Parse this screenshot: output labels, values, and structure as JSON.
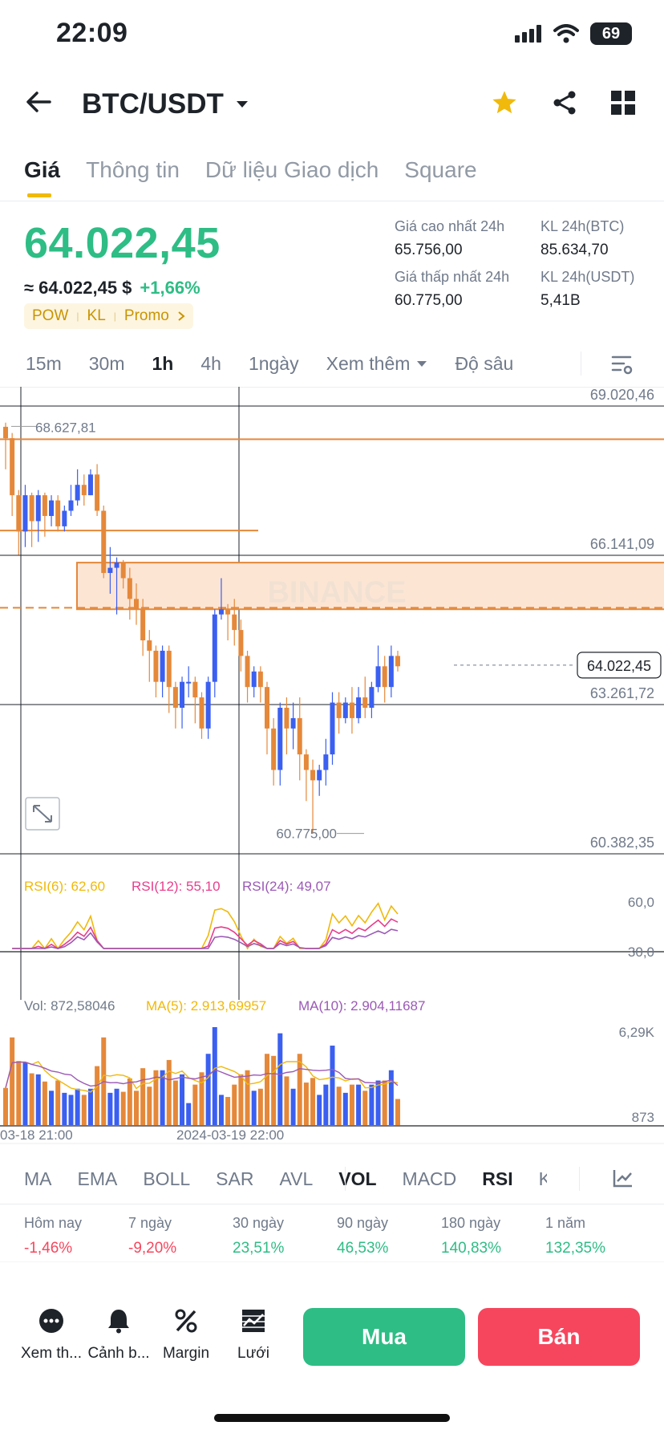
{
  "status_bar": {
    "time": "22:09",
    "battery": "69"
  },
  "header": {
    "pair": "BTC/USDT"
  },
  "tabs": [
    {
      "label": "Giá",
      "active": true
    },
    {
      "label": "Thông tin",
      "active": false
    },
    {
      "label": "Dữ liệu Giao dịch",
      "active": false
    },
    {
      "label": "Square",
      "active": false
    }
  ],
  "price": {
    "last": "64.022,45",
    "fiat": "≈ 64.022,45 $",
    "change": "+1,66%",
    "badges": [
      "POW",
      "KL",
      "Promo"
    ]
  },
  "stats": [
    {
      "label": "Giá cao nhất 24h",
      "value": "65.756,00"
    },
    {
      "label": "KL 24h(BTC)",
      "value": "85.634,70"
    },
    {
      "label": "Giá thấp nhất 24h",
      "value": "60.775,00"
    },
    {
      "label": "KL 24h(USDT)",
      "value": "5,41B"
    }
  ],
  "intervals": [
    {
      "label": "15m",
      "active": false
    },
    {
      "label": "30m",
      "active": false
    },
    {
      "label": "1h",
      "active": true
    },
    {
      "label": "4h",
      "active": false
    },
    {
      "label": "1ngày",
      "active": false
    },
    {
      "label": "Xem thêm",
      "active": false
    },
    {
      "label": "Độ sâu",
      "active": false
    }
  ],
  "chart": {
    "watermark": "BINANCE",
    "axis_labels": [
      "69.020,46",
      "66.141,09",
      "63.261,72",
      "60.382,35"
    ],
    "marked_high": "68.627,81",
    "marked_low": "60.775,00",
    "current_price_tag": "64.022,45",
    "rsi": {
      "rsi6": "RSI(6): 62,60",
      "rsi12": "RSI(12): 55,10",
      "rsi24": "RSI(24): 49,07",
      "levels": [
        "60,0",
        "30,0"
      ]
    },
    "volume": {
      "vol": "Vol: 872,58046",
      "ma5": "MA(5): 2.913,69957",
      "ma10": "MA(10): 2.904,11687",
      "top": "6,29K",
      "bottom": "873"
    },
    "time_labels": [
      "03-18 21:00",
      "2024-03-19 22:00"
    ],
    "colors": {
      "up": "#3b5ff0",
      "down": "#e5883a",
      "rsi6": "#f0b90b",
      "rsi12": "#e83e8c",
      "rsi24": "#9b59b6",
      "zone": "#fde5d4",
      "level": "#e5883a"
    }
  },
  "chart_data": {
    "type": "candlestick",
    "ylim": [
      60382.35,
      69020.46
    ],
    "candles": [
      [
        68620,
        68400,
        68700,
        67800
      ],
      [
        68400,
        67300,
        68500,
        66900
      ],
      [
        67300,
        66600,
        67400,
        66150
      ],
      [
        66600,
        67300,
        67500,
        66300
      ],
      [
        67300,
        66800,
        67350,
        66300
      ],
      [
        66800,
        67300,
        67400,
        66400
      ],
      [
        67300,
        66900,
        67350,
        66500
      ],
      [
        66900,
        67200,
        67300,
        66700
      ],
      [
        67200,
        66700,
        67300,
        66600
      ],
      [
        66700,
        67000,
        67100,
        66600
      ],
      [
        67000,
        67200,
        67500,
        66900
      ],
      [
        67200,
        67500,
        67800,
        67100
      ],
      [
        67500,
        67300,
        67700,
        67100
      ],
      [
        67300,
        67700,
        67800,
        67300
      ],
      [
        67700,
        67000,
        67900,
        66900
      ],
      [
        67000,
        65800,
        67100,
        65700
      ],
      [
        65800,
        65900,
        66300,
        65400
      ],
      [
        65900,
        66000,
        66100,
        65000
      ],
      [
        66000,
        65700,
        66050,
        65500
      ],
      [
        65700,
        65300,
        65900,
        64900
      ],
      [
        65300,
        65100,
        65600,
        64800
      ],
      [
        65100,
        64500,
        65300,
        64200
      ],
      [
        64500,
        64300,
        64700,
        63700
      ],
      [
        64300,
        63700,
        64400,
        63400
      ],
      [
        63700,
        64300,
        64400,
        63400
      ],
      [
        64300,
        63600,
        64400,
        63100
      ],
      [
        63600,
        63200,
        63700,
        62800
      ],
      [
        63200,
        63700,
        63800,
        62800
      ],
      [
        63700,
        63700,
        64000,
        63400
      ],
      [
        63700,
        63400,
        63800,
        62900
      ],
      [
        63400,
        62800,
        63500,
        62600
      ],
      [
        62800,
        63700,
        63800,
        62600
      ],
      [
        63700,
        65000,
        65100,
        63400
      ],
      [
        65000,
        65100,
        65700,
        64900
      ],
      [
        65100,
        65000,
        65200,
        64500
      ],
      [
        65000,
        64700,
        65300,
        64400
      ],
      [
        64700,
        64200,
        64900,
        63900
      ],
      [
        64200,
        63600,
        64300,
        63300
      ],
      [
        63600,
        63900,
        64000,
        63400
      ],
      [
        63900,
        63600,
        64000,
        63300
      ],
      [
        63600,
        62800,
        63700,
        62300
      ],
      [
        62800,
        62000,
        63000,
        61700
      ],
      [
        62000,
        63200,
        63300,
        61700
      ],
      [
        63200,
        62800,
        63400,
        62300
      ],
      [
        62800,
        63000,
        63300,
        62400
      ],
      [
        63000,
        62300,
        63400,
        61800
      ],
      [
        62300,
        62000,
        62400,
        61400
      ],
      [
        62000,
        61800,
        62200,
        60775
      ],
      [
        61800,
        62000,
        62100,
        61500
      ],
      [
        62000,
        62300,
        62600,
        61700
      ],
      [
        62300,
        63300,
        63500,
        62100
      ],
      [
        63300,
        63000,
        63500,
        62700
      ],
      [
        63000,
        63300,
        63400,
        62900
      ],
      [
        63300,
        63000,
        63600,
        62700
      ],
      [
        63000,
        63400,
        63600,
        62900
      ],
      [
        63400,
        63200,
        63800,
        63000
      ],
      [
        63200,
        63600,
        63700,
        63000
      ],
      [
        63600,
        64000,
        64400,
        63500
      ],
      [
        64000,
        63600,
        64200,
        63300
      ],
      [
        63600,
        64200,
        64400,
        63400
      ],
      [
        64200,
        64000,
        64300,
        63900
      ]
    ]
  },
  "indicators": [
    {
      "label": "MA",
      "active": false
    },
    {
      "label": "EMA",
      "active": false
    },
    {
      "label": "BOLL",
      "active": false
    },
    {
      "label": "SAR",
      "active": false
    },
    {
      "label": "AVL",
      "active": false
    },
    {
      "label": "VOL",
      "active": true
    },
    {
      "label": "MACD",
      "active": false
    },
    {
      "label": "RSI",
      "active": true
    },
    {
      "label": "K",
      "active": false
    }
  ],
  "performance": [
    {
      "label": "Hôm nay",
      "value": "-1,46%",
      "sign": "neg"
    },
    {
      "label": "7 ngày",
      "value": "-9,20%",
      "sign": "neg"
    },
    {
      "label": "30 ngày",
      "value": "23,51%",
      "sign": "pos"
    },
    {
      "label": "90 ngày",
      "value": "46,53%",
      "sign": "pos"
    },
    {
      "label": "180 ngày",
      "value": "140,83%",
      "sign": "pos"
    },
    {
      "label": "1 năm",
      "value": "132,35%",
      "sign": "pos"
    }
  ],
  "bottom_bar": {
    "actions": [
      {
        "label": "Xem th...",
        "icon": "more-icon"
      },
      {
        "label": "Cảnh b...",
        "icon": "bell-icon"
      },
      {
        "label": "Margin",
        "icon": "margin-icon"
      },
      {
        "label": "Lưới",
        "icon": "grid-bot-icon"
      }
    ],
    "buy": "Mua",
    "sell": "Bán"
  }
}
